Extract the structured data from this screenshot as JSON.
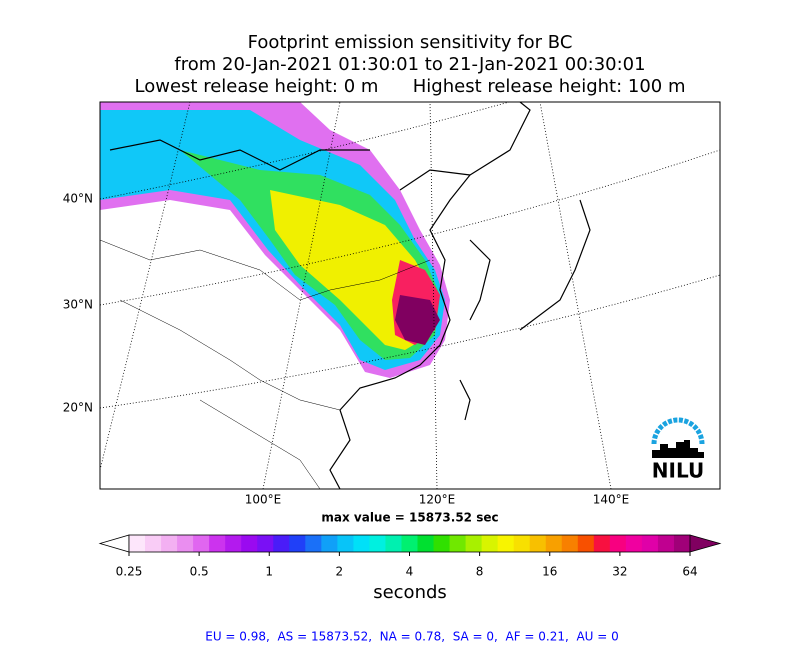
{
  "header": {
    "title_lines": [
      "Footprint emission sensitivity for BC",
      "from 20-Jan-2021 01:30:01 to 21-Jan-2021 00:30:01",
      "Lowest release height: 0 m      Highest release height: 100 m"
    ]
  },
  "map": {
    "lat_labels": [
      "40°N",
      "30°N",
      "20°N"
    ],
    "lon_labels": [
      "100°E",
      "120°E",
      "140°E"
    ],
    "max_value_text": "max value = 15873.52 sec",
    "logo_text": "NILU"
  },
  "colorbar": {
    "label": "seconds",
    "scale": "log",
    "lim": [
      0.25,
      64
    ],
    "ticks": [
      0.25,
      0.5,
      1,
      2,
      4,
      8,
      16,
      32,
      64
    ],
    "colors": [
      "#ffffff",
      "#fde6fb",
      "#f9ccf6",
      "#f3b0f2",
      "#ea8ef0",
      "#e066f0",
      "#cc33ee",
      "#b31aee",
      "#9a0af0",
      "#7a10f5",
      "#4a1cf8",
      "#2040f8",
      "#1a70f8",
      "#10a0f8",
      "#08c4f8",
      "#00e0f8",
      "#00f0e0",
      "#00f0b0",
      "#00f070",
      "#00e030",
      "#30e000",
      "#70e800",
      "#a8f000",
      "#d8f400",
      "#f8f400",
      "#f8e000",
      "#f8c000",
      "#f8a000",
      "#f88000",
      "#f85000",
      "#f81040",
      "#f80080",
      "#f000a0",
      "#e000a8",
      "#c00090",
      "#a00078",
      "#800060"
    ]
  },
  "footer": {
    "text": "EU = 0.98,  AS = 15873.52,  NA = 0.78,  SA = 0,  AF = 0.21,  AU = 0"
  }
}
